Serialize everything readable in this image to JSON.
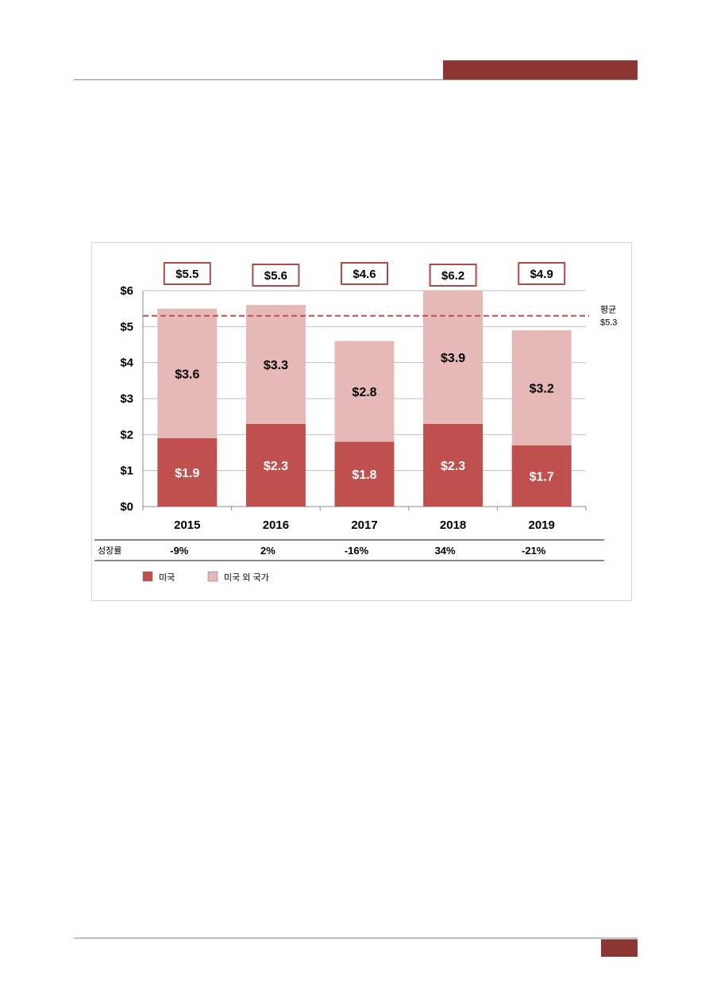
{
  "chart_data": {
    "type": "bar",
    "stacked": true,
    "categories": [
      "2015",
      "2016",
      "2017",
      "2018",
      "2019"
    ],
    "series": [
      {
        "name": "미국",
        "values": [
          1.9,
          2.3,
          1.8,
          2.3,
          1.7
        ],
        "color": "#c0504d",
        "labels": [
          "$1.9",
          "$2.3",
          "$1.8",
          "$2.3",
          "$1.7"
        ]
      },
      {
        "name": "미국 외 국가",
        "values": [
          3.6,
          3.3,
          2.8,
          3.9,
          3.2
        ],
        "color": "#e6b9b8",
        "labels": [
          "$3.6",
          "$3.3",
          "$2.8",
          "$3.9",
          "$3.2"
        ]
      }
    ],
    "totals": [
      "$5.5",
      "$5.6",
      "$4.6",
      "$6.2",
      "$4.9"
    ],
    "average": {
      "value": 5.3,
      "label": "평균",
      "value_label": "$5.3"
    },
    "yticks": [
      "$0",
      "$1",
      "$2",
      "$3",
      "$4",
      "$5",
      "$6"
    ],
    "ylim": [
      0,
      6
    ],
    "grid": true,
    "growth_row": {
      "label": "성장률",
      "values": [
        "-9%",
        "2%",
        "-16%",
        "34%",
        "-21%"
      ]
    },
    "legend_position": "bottom-left",
    "colors": {
      "frame_accent": "#b04a47",
      "average_line": "#c0504d"
    }
  },
  "page": {
    "accent_color": "#8b3634"
  }
}
